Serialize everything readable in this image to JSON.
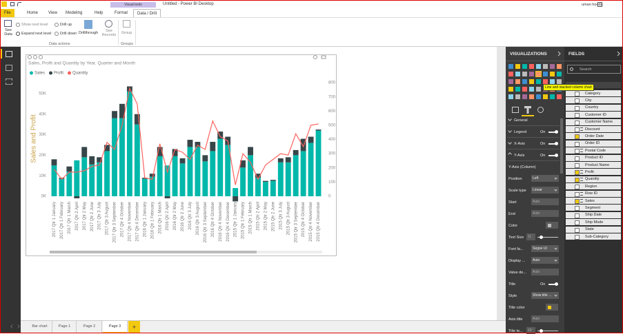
{
  "window": {
    "title": "Untitled - Power BI Desktop",
    "user": "uman hooda"
  },
  "ribbon": {
    "tabs": [
      "File",
      "Home",
      "View",
      "Modeling",
      "Help",
      "Format",
      "Data / Drill"
    ],
    "context_label": "Visual tools",
    "active_tab": 6,
    "buttons": {
      "see_data": "See Data",
      "show_next_level": "Show next level",
      "expand_next_level": "Expand next level",
      "drill_up": "Drill up",
      "drill_down": "Drill down",
      "drillthrough": "Drillthrough",
      "see_records": "See Records",
      "group": "Group"
    },
    "groups": {
      "data_actions": "Data actions",
      "groups": "Groups"
    }
  },
  "chart_data": {
    "type": "combo",
    "title": "Sales, Profit and Quantity by Year, Quarter and Month",
    "y_axis_title": "Sales and Profit",
    "y_axis_title_color": "#c9a24a",
    "legend": "top-left",
    "grid": false,
    "categories": [
      "2017 Qtr 1 January",
      "2017 Qtr 1 February",
      "2017 Qtr 1 March",
      "2017 Qtr 2 April",
      "2017 Qtr 2 May",
      "2017 Qtr 2 June",
      "2017 Qtr 3 July",
      "2017 Qtr 3 August",
      "2017 Qtr 3 September",
      "2017 Qtr 4 October",
      "2017 Qtr 4 November",
      "2017 Qtr 4 December",
      "2016 Qtr 1 January",
      "2016 Qtr 1 February",
      "2016 Qtr 1 March",
      "2016 Qtr 2 April",
      "2016 Qtr 2 May",
      "2016 Qtr 2 June",
      "2016 Qtr 3 July",
      "2016 Qtr 3 August",
      "2016 Qtr 3 September",
      "2016 Qtr 4 October",
      "2016 Qtr 4 November",
      "2016 Qtr 4 December",
      "2015 Qtr 1 January",
      "2015 Qtr 1 February",
      "2015 Qtr 1 March",
      "2015 Qtr 2 April",
      "2015 Qtr 2 May",
      "2015 Qtr 2 June",
      "2015 Qtr 3 July",
      "2015 Qtr 3 August",
      "2015 Qtr 3 September",
      "2015 Qtr 4 October",
      "2015 Qtr 4 November",
      "2015 Qtr 4 December"
    ],
    "series": [
      {
        "name": "Sales",
        "color": "#01b8aa",
        "type": "bar",
        "values": [
          15000,
          8500,
          12000,
          17500,
          19000,
          15500,
          16500,
          22000,
          38000,
          38000,
          51000,
          35000,
          8500,
          9500,
          19500,
          15000,
          19500,
          16000,
          24000,
          24000,
          17000,
          22000,
          28000,
          25000,
          4000,
          14000,
          20000,
          9000,
          7000,
          7500,
          16500,
          16500,
          20000,
          22000,
          26000,
          32000
        ]
      },
      {
        "name": "Profit",
        "color": "#374649",
        "type": "bar",
        "values": [
          3000,
          500,
          2500,
          -1000,
          5000,
          4000,
          2500,
          3000,
          3500,
          7000,
          2500,
          5000,
          500,
          1500,
          4500,
          -1000,
          3500,
          2500,
          3500,
          2500,
          3000,
          4500,
          3500,
          4000,
          -2500,
          3500,
          4000,
          2000,
          500,
          500,
          2000,
          2500,
          2500,
          6000,
          3000,
          500
        ]
      },
      {
        "name": "Quantity",
        "color": "#fd625e",
        "type": "line",
        "axis": "y2",
        "values": [
          190,
          120,
          170,
          170,
          180,
          210,
          220,
          380,
          330,
          500,
          760,
          650,
          130,
          120,
          370,
          170,
          330,
          310,
          260,
          360,
          330,
          530,
          420,
          390,
          80,
          300,
          240,
          120,
          220,
          260,
          300,
          290,
          440,
          350,
          500,
          510
        ]
      }
    ],
    "ylim": [
      0,
      56000
    ],
    "yticks": [
      {
        "value": 0,
        "label": "0K"
      },
      {
        "value": 10000,
        "label": "10K"
      },
      {
        "value": 20000,
        "label": "20K"
      },
      {
        "value": 30000,
        "label": "30K"
      },
      {
        "value": 40000,
        "label": "40K"
      },
      {
        "value": 50000,
        "label": "50K"
      }
    ],
    "y2lim": [
      0,
      810
    ],
    "y2ticks": [
      0,
      100,
      200,
      300,
      400,
      500,
      600,
      700,
      800
    ]
  },
  "visualizations": {
    "header": "VISUALIZATIONS",
    "tooltip": "Line and stacked column chart",
    "sections": [
      {
        "label": "General",
        "expanded": false
      },
      {
        "label": "Legend",
        "toggle": "On",
        "expanded": false
      },
      {
        "label": "X-Axis",
        "toggle": "On",
        "expanded": false
      },
      {
        "label": "Y-Axis",
        "toggle": "On",
        "expanded": true
      }
    ],
    "subheading": "Y-Axis (Column)",
    "rows": [
      {
        "label": "Position",
        "dropdown": "Left"
      },
      {
        "label": "Scale type",
        "dropdown": "Linear"
      },
      {
        "label": "Start",
        "input": "Auto"
      },
      {
        "label": "End",
        "input": "Auto"
      },
      {
        "label": "Color",
        "swatch": "#bdbdbd"
      },
      {
        "label": "Text Size",
        "input": 11,
        "slider": true
      },
      {
        "label": "Font fa...",
        "dropdown": "Segoe UI"
      },
      {
        "label": "Display ...",
        "dropdown": "Auto"
      },
      {
        "label": "Value de...",
        "input": "Auto"
      },
      {
        "label": "Title",
        "toggle": "On"
      },
      {
        "label": "Style",
        "dropdown": "Show title ..."
      },
      {
        "label": "Title color",
        "swatch": "#f2c811"
      },
      {
        "label": "Axis title",
        "input": "Auto"
      },
      {
        "label": "Title te...",
        "input": 19,
        "slider": true
      }
    ]
  },
  "fields": {
    "header": "FIELDS",
    "search": "Search",
    "items": [
      {
        "name": "Category",
        "checked": false,
        "sum": false
      },
      {
        "name": "City",
        "checked": false,
        "sum": false
      },
      {
        "name": "Country",
        "checked": false,
        "sum": false
      },
      {
        "name": "Customer ID",
        "checked": false,
        "sum": false
      },
      {
        "name": "Customer Name",
        "checked": false,
        "sum": false
      },
      {
        "name": "Discount",
        "checked": false,
        "sum": true
      },
      {
        "name": "Order Date",
        "checked": true,
        "sum": false
      },
      {
        "name": "Order ID",
        "checked": false,
        "sum": false
      },
      {
        "name": "Postal Code",
        "checked": false,
        "sum": true
      },
      {
        "name": "Product ID",
        "checked": false,
        "sum": false
      },
      {
        "name": "Product Name",
        "checked": false,
        "sum": false
      },
      {
        "name": "Profit",
        "checked": true,
        "sum": true
      },
      {
        "name": "Quantity",
        "checked": true,
        "sum": true
      },
      {
        "name": "Region",
        "checked": false,
        "sum": false
      },
      {
        "name": "Row ID",
        "checked": false,
        "sum": true
      },
      {
        "name": "Sales",
        "checked": true,
        "sum": true
      },
      {
        "name": "Segment",
        "checked": false,
        "sum": false
      },
      {
        "name": "Ship Date",
        "checked": false,
        "sum": false
      },
      {
        "name": "Ship Mode",
        "checked": false,
        "sum": false
      },
      {
        "name": "State",
        "checked": false,
        "sum": false
      },
      {
        "name": "Sub-Category",
        "checked": false,
        "sum": false
      }
    ]
  },
  "pages": {
    "tabs": [
      "Bar chart",
      "Page 1",
      "Page 2",
      "Page 3"
    ],
    "active": 3,
    "add": "+"
  }
}
